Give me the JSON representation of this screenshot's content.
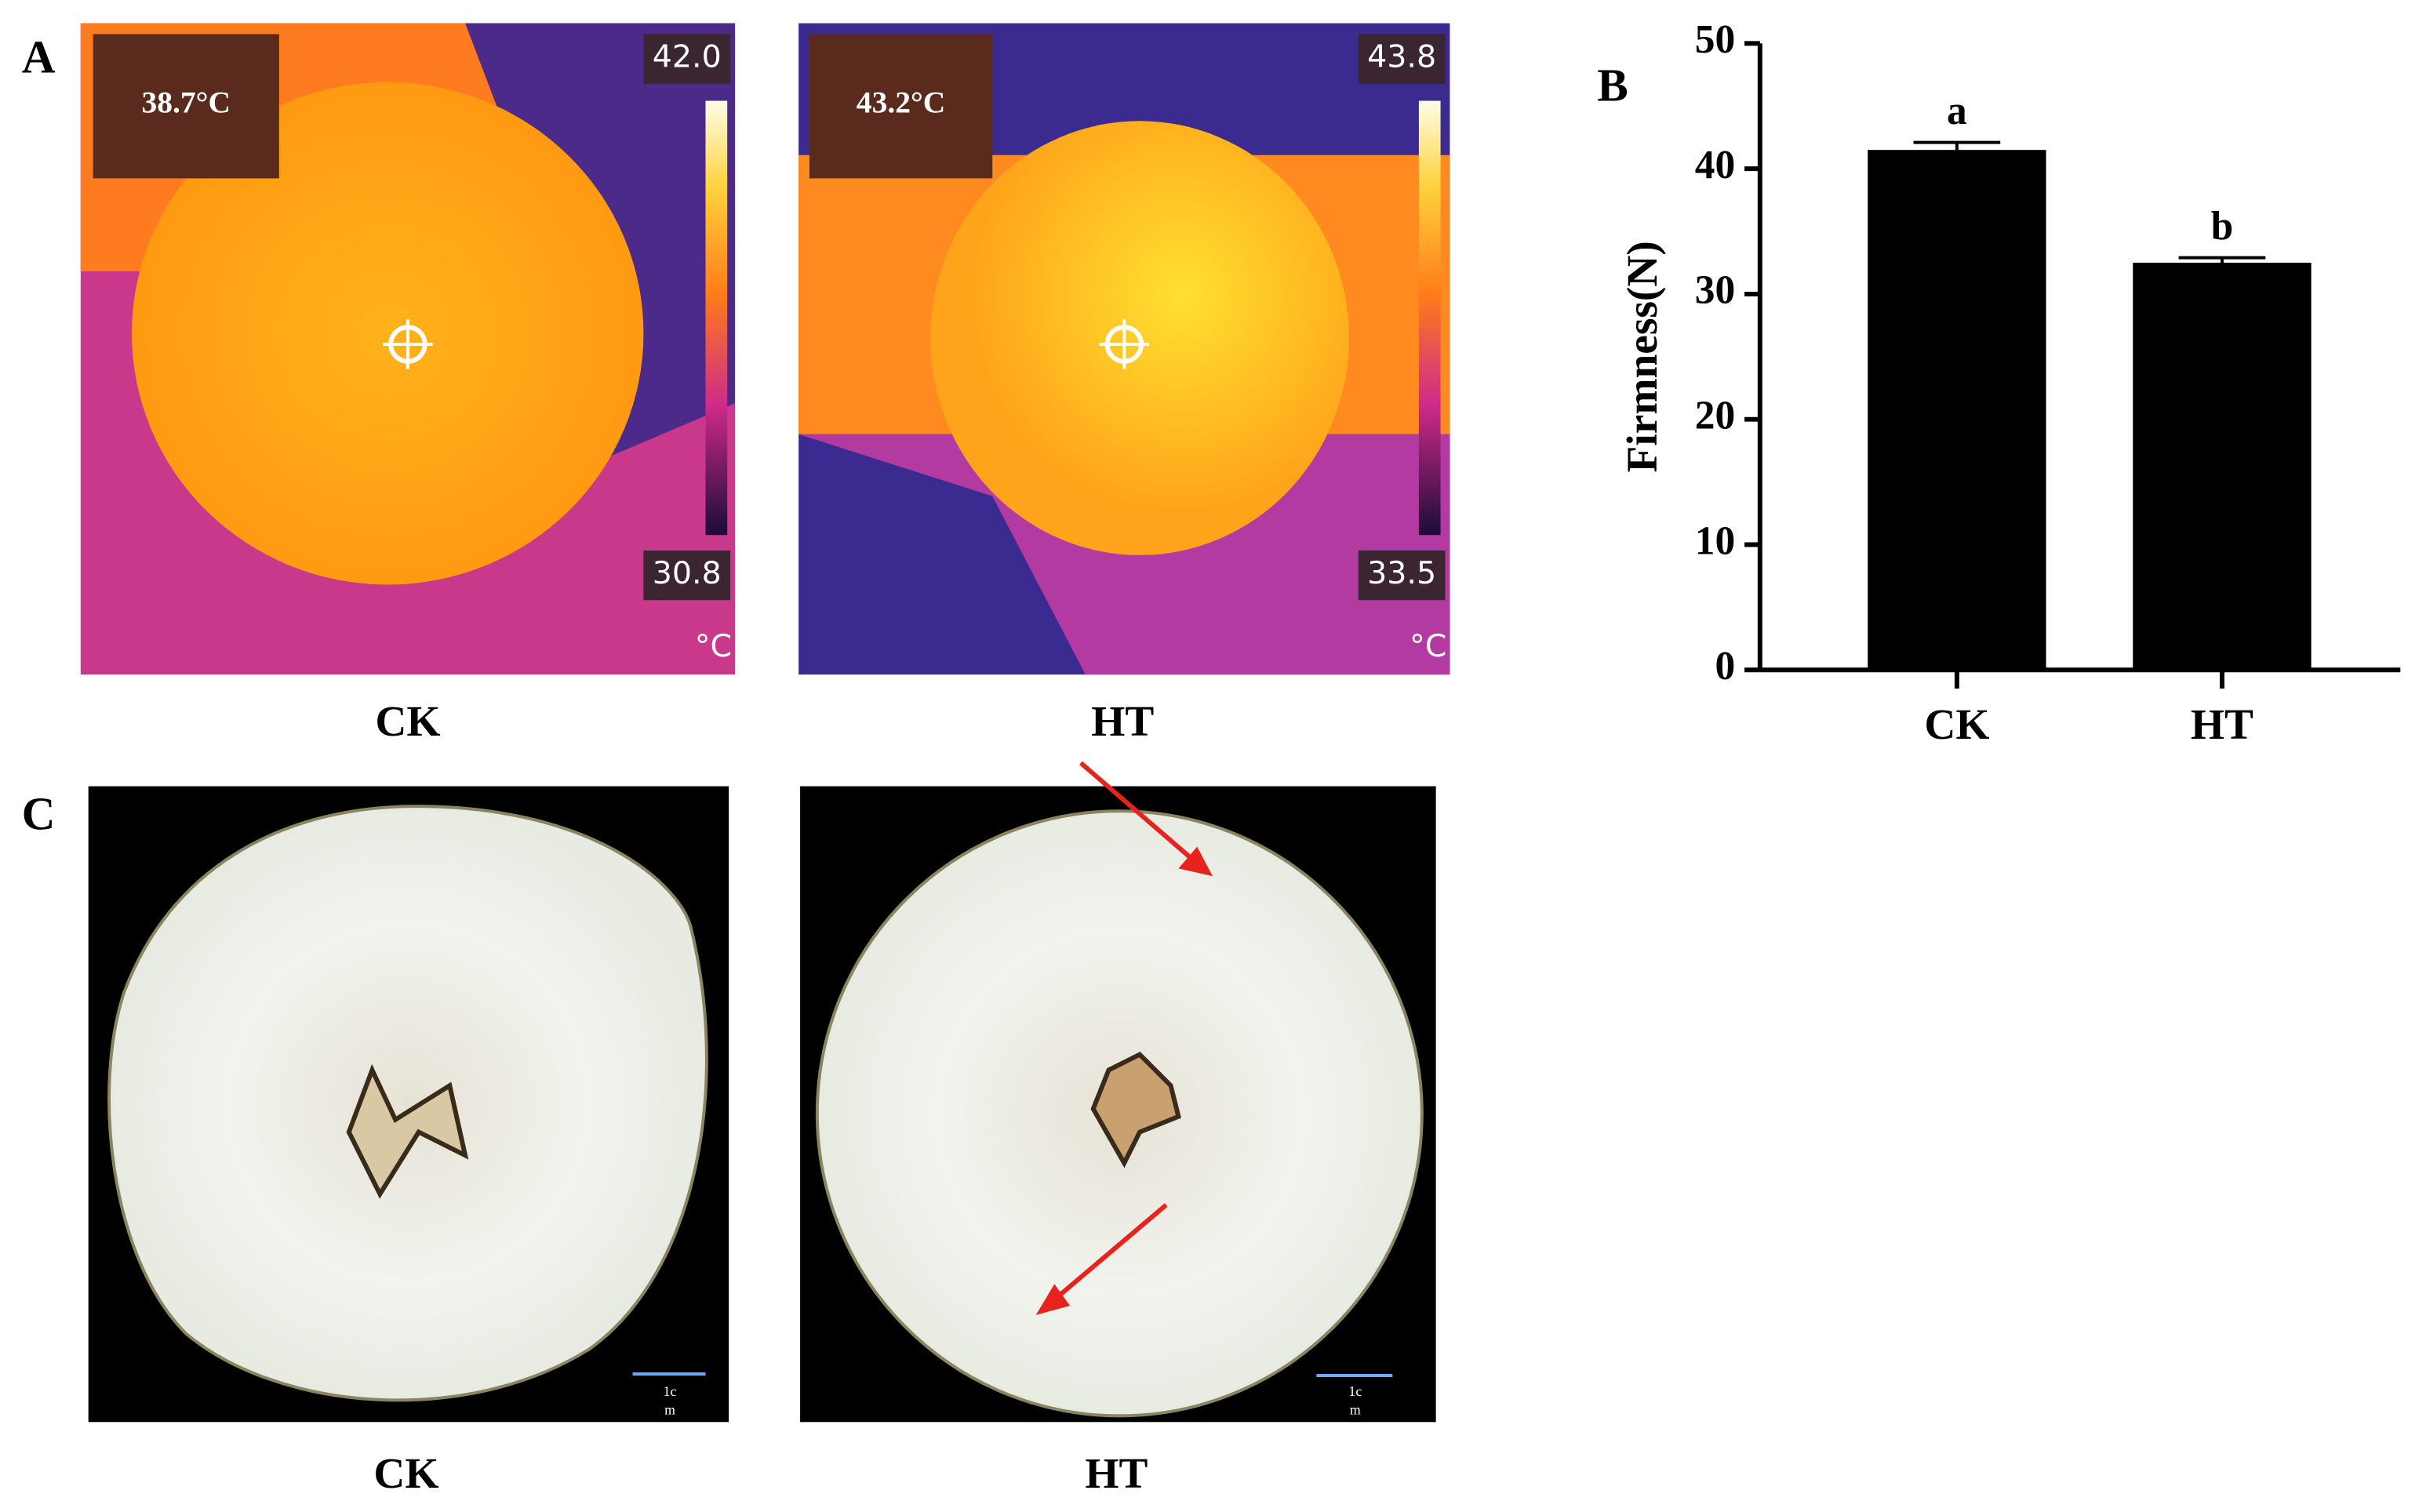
{
  "panels": {
    "a": "A",
    "b": "B",
    "c": "C"
  },
  "thermal": [
    {
      "spot": "38.7°C",
      "max": "42.0",
      "min": "30.8",
      "unit": "°C",
      "caption": "CK"
    },
    {
      "spot": "43.2°C",
      "max": "43.8",
      "min": "33.5",
      "unit": "°C",
      "caption": "HT"
    }
  ],
  "slices": [
    {
      "scale": [
        "1c",
        "m"
      ],
      "caption": "CK"
    },
    {
      "scale": [
        "1c",
        "m"
      ],
      "caption": "HT"
    }
  ],
  "chart_data": {
    "type": "bar",
    "ylabel": "Firmness(N)",
    "categories": [
      "CK",
      "HT"
    ],
    "values": [
      41.5,
      32.5
    ],
    "errors": [
      0.6,
      0.4
    ],
    "annotations": [
      "a",
      "b"
    ],
    "color": "#000000",
    "ylim": [
      0,
      50
    ],
    "yticks": [
      0,
      10,
      20,
      30,
      40,
      50
    ]
  }
}
